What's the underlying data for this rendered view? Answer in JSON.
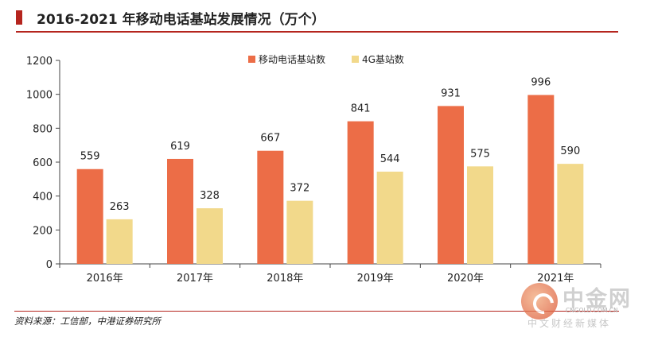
{
  "header": {
    "title": "2016-2021 年移动电话基站发展情况（万个）"
  },
  "footer": {
    "source": "资料来源：工信部，中港证券研究所"
  },
  "watermark": {
    "name": "中金网",
    "url": "CNGOLD.COM.CN",
    "tagline": "中文财经新媒体"
  },
  "colors": {
    "mobile": "#ec6d47",
    "lte": "#f2d98b",
    "accent": "#b5251e"
  },
  "chart_data": {
    "type": "bar",
    "title": "2016-2021 年移动电话基站发展情况（万个）",
    "categories": [
      "2016年",
      "2017年",
      "2018年",
      "2019年",
      "2020年",
      "2021年"
    ],
    "series": [
      {
        "name": "移动电话基站数",
        "values": [
          559,
          619,
          667,
          841,
          931,
          996
        ]
      },
      {
        "name": "4G基站数",
        "values": [
          263,
          328,
          372,
          544,
          575,
          590
        ]
      }
    ],
    "ylim": [
      0,
      1200
    ],
    "yticks": [
      0,
      200,
      400,
      600,
      800,
      1000,
      1200
    ],
    "grid": false,
    "legend": "top-center",
    "xlabel": "",
    "ylabel": ""
  }
}
